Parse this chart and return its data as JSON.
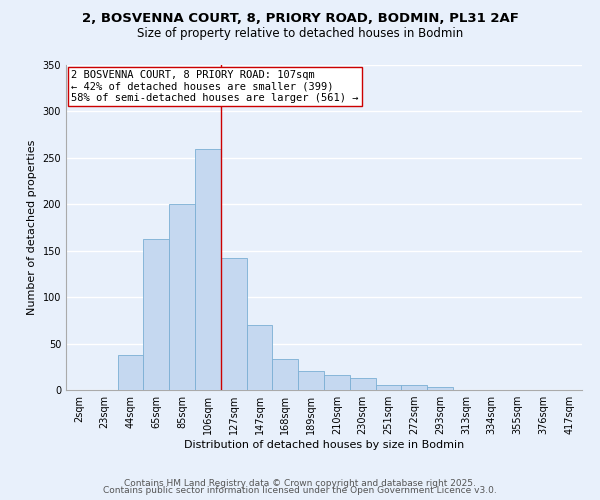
{
  "title1": "2, BOSVENNA COURT, 8, PRIORY ROAD, BODMIN, PL31 2AF",
  "title2": "Size of property relative to detached houses in Bodmin",
  "xlabel": "Distribution of detached houses by size in Bodmin",
  "ylabel": "Number of detached properties",
  "bar_labels": [
    "2sqm",
    "23sqm",
    "44sqm",
    "65sqm",
    "85sqm",
    "106sqm",
    "127sqm",
    "147sqm",
    "168sqm",
    "189sqm",
    "210sqm",
    "230sqm",
    "251sqm",
    "272sqm",
    "293sqm",
    "313sqm",
    "334sqm",
    "355sqm",
    "376sqm",
    "417sqm"
  ],
  "bar_values": [
    0,
    0,
    38,
    163,
    200,
    260,
    142,
    70,
    33,
    21,
    16,
    13,
    5,
    5,
    3,
    0,
    0,
    0,
    0,
    0
  ],
  "bar_color": "#c5d8f0",
  "bar_edge_color": "#7bafd4",
  "background_color": "#e8f0fb",
  "grid_color": "#ffffff",
  "ylim": [
    0,
    350
  ],
  "yticks": [
    0,
    50,
    100,
    150,
    200,
    250,
    300,
    350
  ],
  "property_line_color": "#cc0000",
  "annotation_title": "2 BOSVENNA COURT, 8 PRIORY ROAD: 107sqm",
  "annotation_line1": "← 42% of detached houses are smaller (399)",
  "annotation_line2": "58% of semi-detached houses are larger (561) →",
  "annotation_box_color": "#ffffff",
  "annotation_border_color": "#cc0000",
  "footer1": "Contains HM Land Registry data © Crown copyright and database right 2025.",
  "footer2": "Contains public sector information licensed under the Open Government Licence v3.0.",
  "title_fontsize": 9.5,
  "subtitle_fontsize": 8.5,
  "axis_label_fontsize": 8,
  "tick_fontsize": 7,
  "footer_fontsize": 6.5,
  "annotation_fontsize": 7.5
}
